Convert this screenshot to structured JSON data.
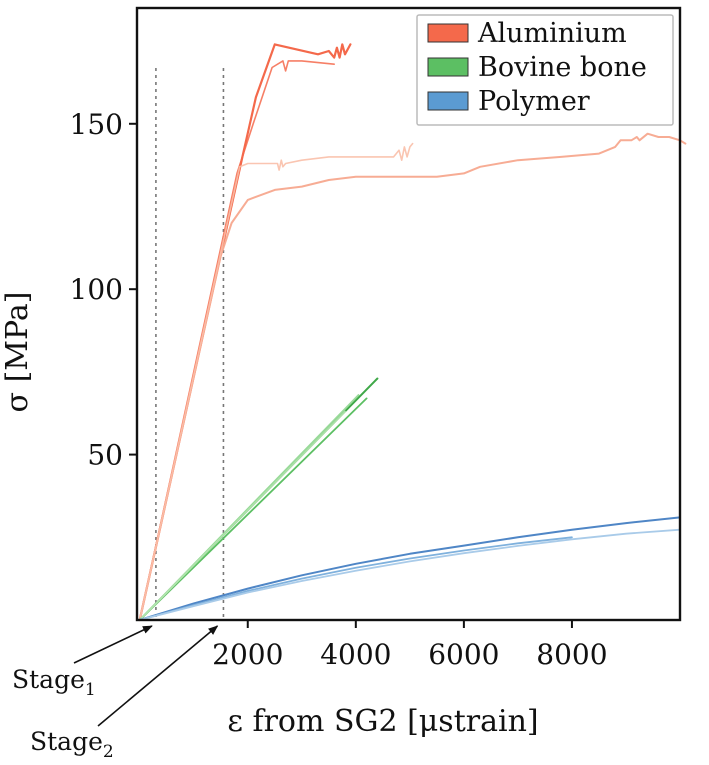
{
  "chart_data": {
    "type": "line",
    "xlabel": "ε from SG2 [μstrain]",
    "ylabel": "σ [MPa]",
    "xlim": [
      -50,
      10000
    ],
    "ylim": [
      0,
      185
    ],
    "xticks": [
      2000,
      4000,
      6000,
      8000
    ],
    "yticks": [
      50,
      100,
      150
    ],
    "grid": false,
    "legend_position": "top-right",
    "legend": [
      {
        "label": "Aluminium",
        "color": "#f4694b"
      },
      {
        "label": "Bovine bone",
        "color": "#5cbf63"
      },
      {
        "label": "Polymer",
        "color": "#5b9bd2"
      }
    ],
    "vlines": [
      300,
      1550
    ],
    "annotations": [
      {
        "base": "Stage",
        "sub": "1",
        "x": 300
      },
      {
        "base": "Stage",
        "sub": "2",
        "x": 1550
      }
    ],
    "series": [
      {
        "group": "Aluminium",
        "color": "#f4694b",
        "width": 2.2,
        "points": [
          [
            0,
            0
          ],
          [
            1900,
            140
          ],
          [
            2150,
            158
          ],
          [
            2500,
            174
          ],
          [
            3300,
            171
          ],
          [
            3500,
            172
          ],
          [
            3600,
            170
          ],
          [
            3650,
            173
          ],
          [
            3700,
            170
          ],
          [
            3750,
            174
          ],
          [
            3800,
            171
          ],
          [
            3900,
            174
          ]
        ]
      },
      {
        "group": "Aluminium",
        "color": "#f4694b",
        "width": 1.6,
        "opacity": 0.85,
        "points": [
          [
            0,
            0
          ],
          [
            1800,
            135
          ],
          [
            2100,
            150
          ],
          [
            2450,
            167
          ],
          [
            2650,
            169
          ],
          [
            2700,
            166
          ],
          [
            2750,
            169
          ],
          [
            3000,
            169
          ],
          [
            3600,
            168
          ]
        ]
      },
      {
        "group": "Aluminium",
        "color": "#f7a88e",
        "width": 2,
        "opacity": 0.95,
        "points": [
          [
            0,
            0
          ],
          [
            1500,
            110
          ],
          [
            1700,
            120
          ],
          [
            2000,
            127
          ],
          [
            2500,
            130
          ],
          [
            3000,
            131
          ],
          [
            3500,
            133
          ],
          [
            4000,
            134
          ],
          [
            5000,
            134
          ],
          [
            5500,
            134
          ],
          [
            6000,
            135
          ],
          [
            6300,
            137
          ],
          [
            7000,
            139
          ],
          [
            7800,
            140
          ],
          [
            8500,
            141
          ],
          [
            8800,
            143
          ],
          [
            8900,
            145
          ],
          [
            9100,
            145
          ],
          [
            9200,
            146
          ],
          [
            9250,
            145
          ],
          [
            9400,
            147
          ],
          [
            9600,
            146
          ],
          [
            9800,
            146
          ],
          [
            10000,
            145
          ],
          [
            10100,
            144
          ]
        ]
      },
      {
        "group": "Aluminium",
        "color": "#f9bfa9",
        "width": 1.6,
        "opacity": 0.9,
        "points": [
          [
            0,
            0
          ],
          [
            1850,
            137
          ],
          [
            2000,
            138
          ],
          [
            2400,
            138
          ],
          [
            2550,
            138
          ],
          [
            2580,
            136
          ],
          [
            2620,
            139
          ],
          [
            2650,
            137
          ],
          [
            2700,
            138
          ],
          [
            3000,
            139
          ],
          [
            3500,
            140
          ],
          [
            4000,
            140
          ],
          [
            4700,
            140
          ],
          [
            4800,
            142
          ],
          [
            4850,
            139
          ],
          [
            4900,
            143
          ],
          [
            4950,
            140
          ],
          [
            5000,
            143
          ],
          [
            5050,
            144
          ]
        ]
      },
      {
        "group": "Bovine bone",
        "color": "#3fa848",
        "width": 2,
        "points": [
          [
            0,
            0
          ],
          [
            4400,
            73
          ]
        ]
      },
      {
        "group": "Bovine bone",
        "color": "#5cbf63",
        "width": 1.8,
        "points": [
          [
            0,
            0
          ],
          [
            4200,
            67
          ]
        ]
      },
      {
        "group": "Bovine bone",
        "color": "#8ed68f",
        "width": 1.8,
        "opacity": 0.9,
        "points": [
          [
            0,
            0
          ],
          [
            4050,
            68
          ]
        ]
      },
      {
        "group": "Bovine bone",
        "color": "#b6e6b1",
        "width": 1.8,
        "opacity": 0.9,
        "points": [
          [
            0,
            0
          ],
          [
            3800,
            63
          ]
        ]
      },
      {
        "group": "Polymer",
        "color": "#4f86c6",
        "width": 2,
        "points": [
          [
            0,
            0
          ],
          [
            1000,
            5
          ],
          [
            2000,
            9.5
          ],
          [
            3000,
            13.5
          ],
          [
            4000,
            17
          ],
          [
            5000,
            20
          ],
          [
            6000,
            22.5
          ],
          [
            7000,
            25
          ],
          [
            8000,
            27.3
          ],
          [
            9000,
            29.3
          ],
          [
            10000,
            31
          ]
        ]
      },
      {
        "group": "Polymer",
        "color": "#7fb1dd",
        "width": 1.8,
        "points": [
          [
            0,
            0
          ],
          [
            1000,
            4.5
          ],
          [
            2000,
            8.8
          ],
          [
            3000,
            12.5
          ],
          [
            4000,
            15.8
          ],
          [
            5000,
            18.6
          ],
          [
            6000,
            21
          ],
          [
            7000,
            23.2
          ],
          [
            8000,
            25
          ]
        ]
      },
      {
        "group": "Polymer",
        "color": "#a9cbe9",
        "width": 1.8,
        "points": [
          [
            0,
            0
          ],
          [
            1000,
            4.2
          ],
          [
            2000,
            8.3
          ],
          [
            3000,
            11.8
          ],
          [
            4000,
            14.9
          ],
          [
            5000,
            17.7
          ],
          [
            6000,
            20.2
          ],
          [
            7000,
            22.4
          ],
          [
            8000,
            24.4
          ],
          [
            9000,
            26.1
          ],
          [
            10000,
            27.3
          ]
        ]
      }
    ]
  }
}
